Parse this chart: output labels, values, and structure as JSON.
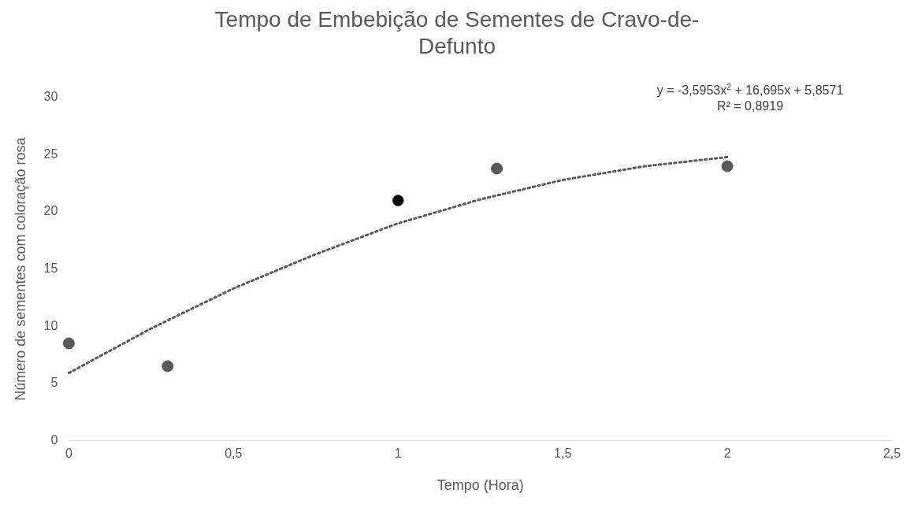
{
  "chart_data": {
    "type": "scatter",
    "title": "Tempo de Embebição de Sementes de Cravo-de-Defunto",
    "xlabel": "Tempo (Hora)",
    "ylabel": "Número de sementes com coloração rosa",
    "annotations": [
      "y = -3,5953x$^{2}$ + 16,695x + 5,8571",
      "R² = 0,8919"
    ],
    "xlim": [
      0,
      2.5
    ],
    "xticks": [
      0,
      {
        "value": 0.5,
        "label": "0,5"
      },
      1,
      {
        "value": 1.5,
        "label": "1,5"
      },
      2,
      {
        "value": 2.5,
        "label": "2,5"
      }
    ],
    "ylim": [
      0,
      30
    ],
    "yticks": [
      0,
      5,
      10,
      15,
      20,
      25,
      30
    ],
    "series": [
      {
        "type": "scatter",
        "color": "#595959",
        "colors": [
          "#595959",
          "#595959",
          "#000000",
          "#595959",
          "#595959"
        ],
        "x": [
          0,
          0.3,
          1,
          1.3,
          2
        ],
        "values": [
          8.5,
          6.5,
          21,
          23.8,
          24
        ],
        "marker": "circle"
      },
      {
        "type": "line",
        "color": "#595959",
        "x": [
          0,
          0.25,
          0.5,
          0.75,
          1,
          1.25,
          1.5,
          1.75,
          2
        ],
        "values": [
          5.9,
          9.8,
          13.3,
          16.3,
          19,
          21.1,
          22.8,
          24,
          24.8
        ],
        "marker": "none",
        "line_style": "dotted"
      }
    ]
  }
}
